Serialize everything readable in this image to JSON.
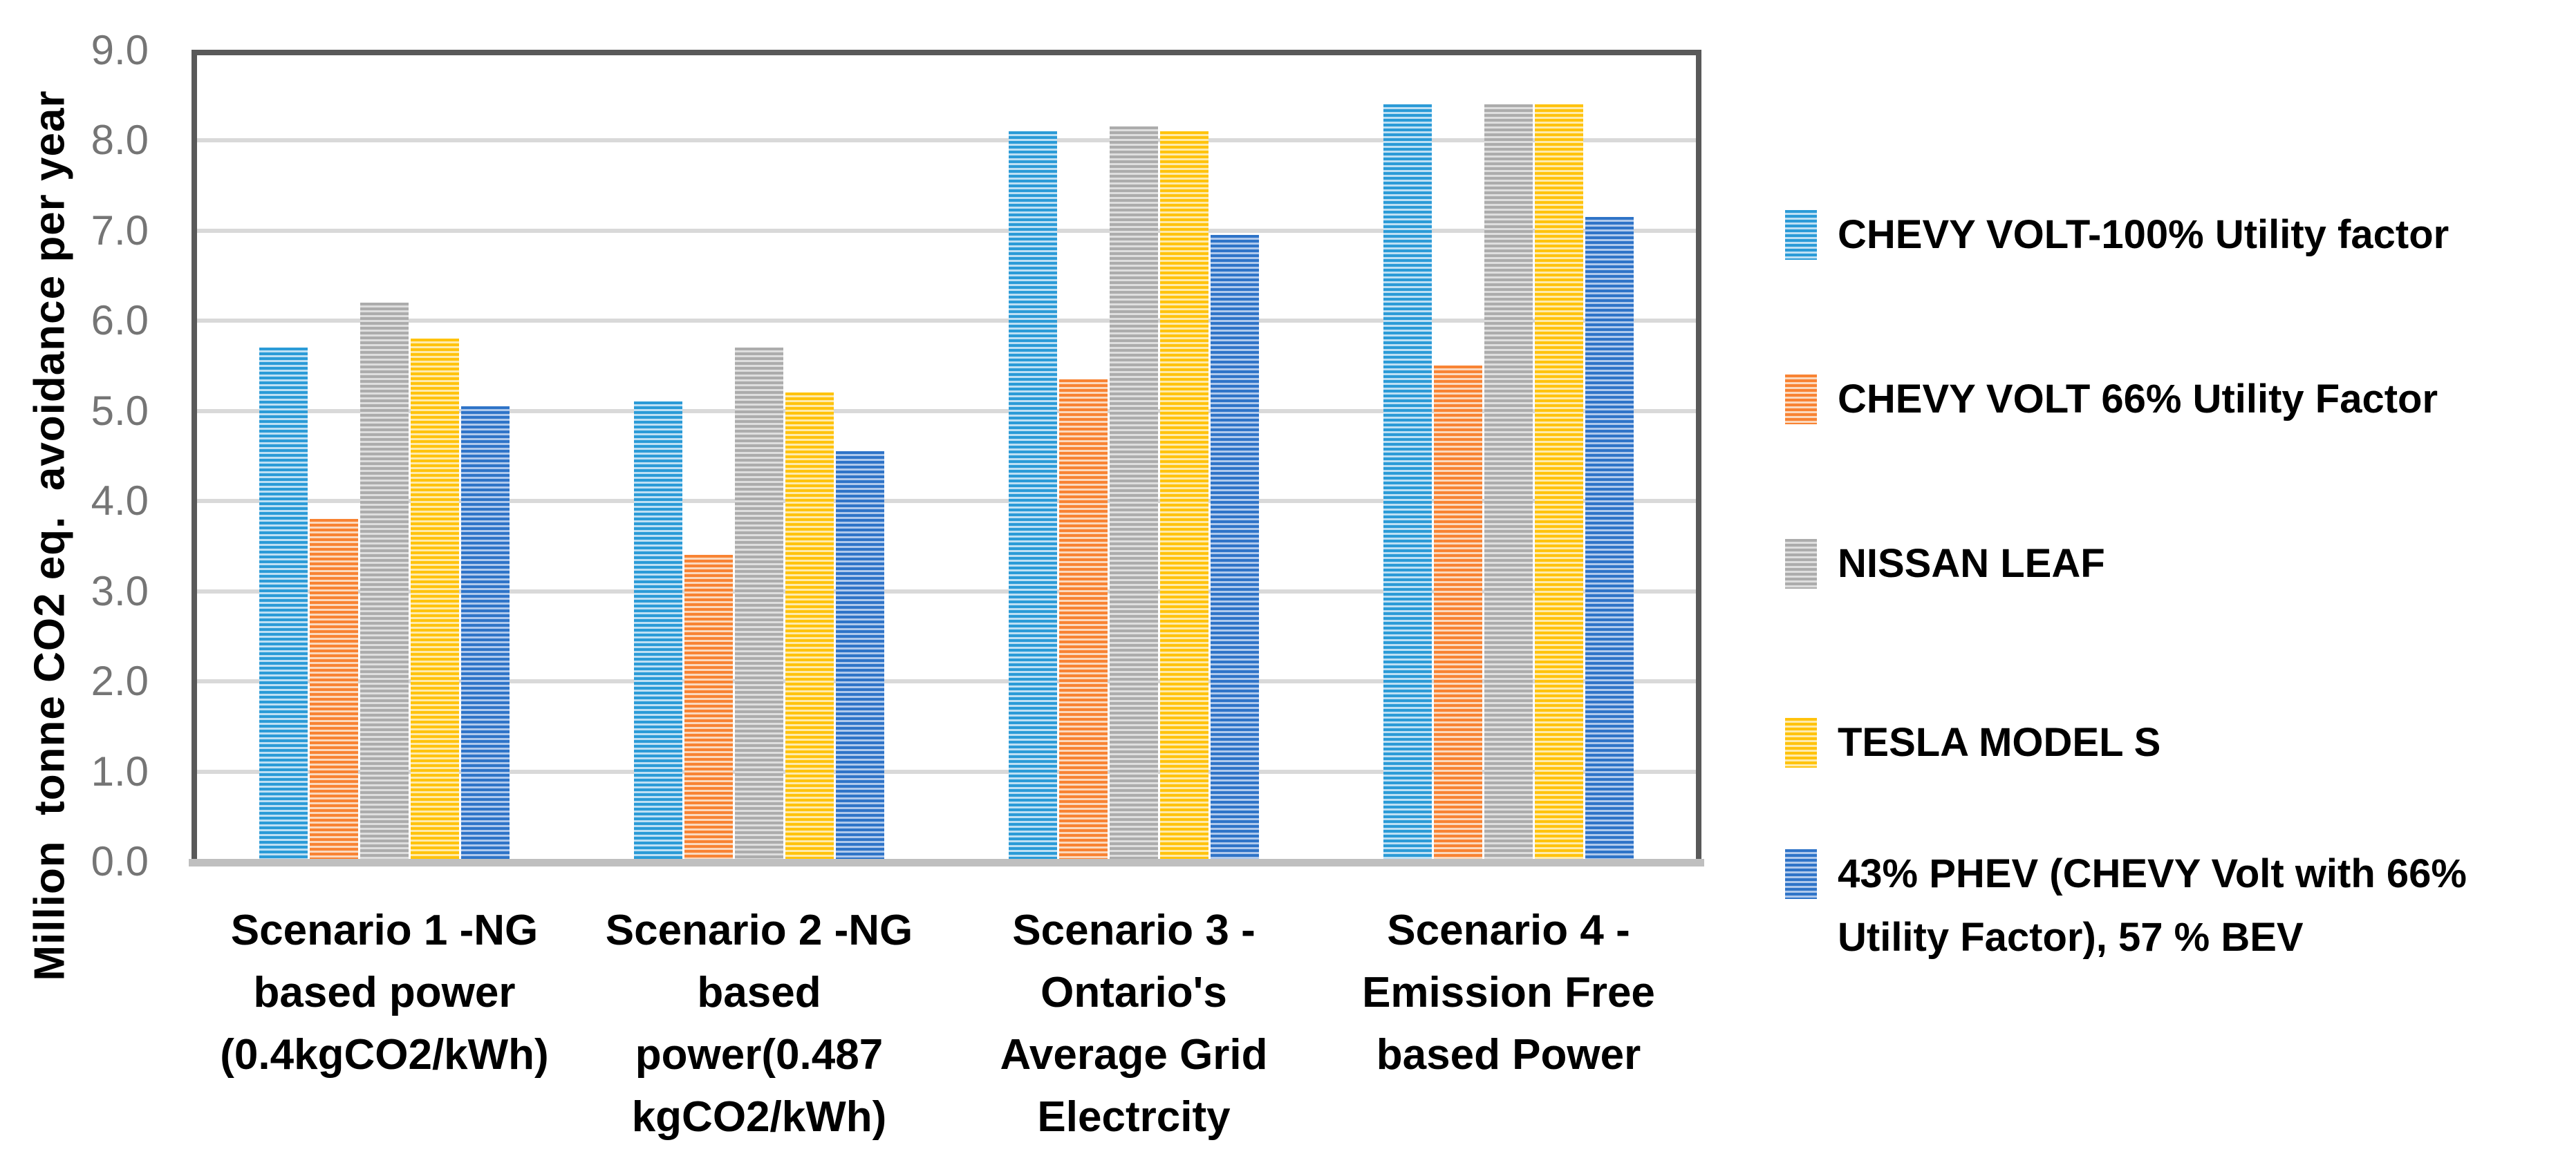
{
  "chart_data": {
    "type": "bar",
    "title": "",
    "xlabel": "",
    "ylabel": "Million  tonne CO2 eq.  avoidance per year",
    "ylim": [
      0,
      9
    ],
    "ytick_step": 1.0,
    "ytick_labels": [
      "9.0",
      "8.0",
      "7.0",
      "6.0",
      "5.0",
      "4.0",
      "3.0",
      "2.0",
      "1.0",
      "0.0"
    ],
    "grid": true,
    "legend_position": "right",
    "categories": [
      "Scenario 1 -NG based power (0.4kgCO2/kWh)",
      "Scenario 2 -NG based power(0.487 kgCO2/kWh)",
      "Scenario 3 - Ontario's Average Grid Electrcity",
      "Scenario 4 - Emission Free based Power"
    ],
    "category_label_lines": [
      [
        "Scenario 1 -NG",
        "based power",
        "(0.4kgCO2/kWh)"
      ],
      [
        "Scenario 2 -NG",
        "based",
        "power(0.487",
        "kgCO2/kWh)"
      ],
      [
        "Scenario 3 -",
        "Ontario's",
        "Average Grid",
        "Electrcity"
      ],
      [
        "Scenario 4 -",
        "Emission Free",
        "based Power"
      ]
    ],
    "series": [
      {
        "name": "CHEVY VOLT-100% Utility factor",
        "pattern": "light-horizontal-stripes",
        "stripe_dark": "#2B9BD7",
        "stripe_light": "#BEE0F4",
        "values": [
          5.7,
          5.1,
          8.1,
          8.4
        ]
      },
      {
        "name": "CHEVY VOLT 66% Utility Factor",
        "pattern": "light-horizontal-stripes",
        "stripe_dark": "#F88333",
        "stripe_light": "#FBD9BE",
        "values": [
          3.8,
          3.4,
          5.35,
          5.5
        ]
      },
      {
        "name": "NISSAN LEAF",
        "pattern": "light-horizontal-stripes",
        "stripe_dark": "#ACACAC",
        "stripe_light": "#DEDEDE",
        "values": [
          6.2,
          5.7,
          8.15,
          8.4
        ]
      },
      {
        "name": "TESLA MODEL S",
        "pattern": "light-horizontal-stripes",
        "stripe_dark": "#FFC30D",
        "stripe_light": "#FEEBAC",
        "values": [
          5.8,
          5.2,
          8.1,
          8.4
        ]
      },
      {
        "name": " 43% PHEV (CHEVY Volt with 66% Utility Factor), 57 % BEV",
        "pattern": "light-horizontal-stripes",
        "stripe_dark": "#2F74C8",
        "stripe_light": "#AFC9EC",
        "values": [
          5.05,
          4.55,
          6.95,
          7.15
        ]
      }
    ],
    "axis_colors": {
      "grid": "#D9D9D9",
      "plot_border": "#595959",
      "baseline": "#BFBFBF",
      "tick_text": "#757575"
    }
  }
}
